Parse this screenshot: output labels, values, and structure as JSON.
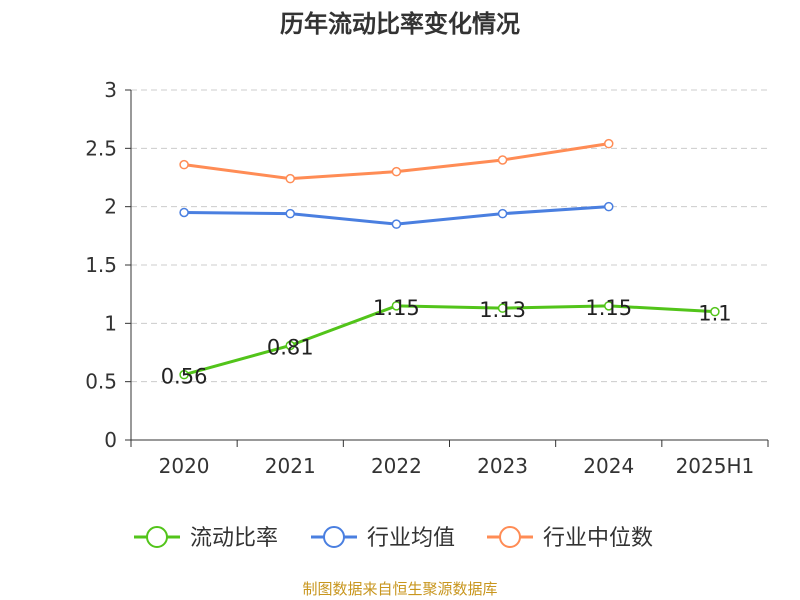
{
  "chart_data": {
    "type": "line",
    "title": "历年流动比率变化情况",
    "categories": [
      "2020",
      "2021",
      "2022",
      "2023",
      "2024",
      "2025H1"
    ],
    "ylim": [
      0,
      3
    ],
    "yticks": [
      "0",
      "0.5",
      "1",
      "1.5",
      "2",
      "2.5",
      "3"
    ],
    "grid": true,
    "legend_position": "bottom",
    "series": [
      {
        "name": "流动比率",
        "color": "#52c41a",
        "values": [
          0.56,
          0.81,
          1.15,
          1.13,
          1.15,
          1.1
        ],
        "labels": [
          "0.56",
          "0.81",
          "1.15",
          "1.13",
          "1.15",
          "1.1"
        ]
      },
      {
        "name": "行业均值",
        "color": "#4a7fe0",
        "values": [
          1.95,
          1.94,
          1.85,
          1.94,
          2.0,
          null
        ]
      },
      {
        "name": "行业中位数",
        "color": "#ff8c55",
        "values": [
          2.36,
          2.24,
          2.3,
          2.4,
          2.54,
          null
        ]
      }
    ]
  },
  "source": "制图数据来自恒生聚源数据库"
}
